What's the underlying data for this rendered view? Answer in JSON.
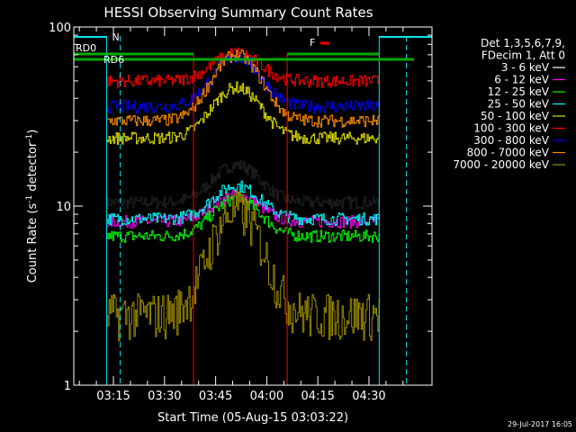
{
  "chart_data": {
    "type": "line",
    "title": "HESSI Observing Summary Count Rates",
    "xlabel": "Start Time (05-Aug-15 03:03:22)",
    "ylabel_main": "Count Rate (s",
    "ylabel_sup1": "-1",
    "ylabel_mid": " detector",
    "ylabel_sup2": "-1",
    "ylabel_end": ")",
    "yscale": "log",
    "ylim": [
      1,
      100
    ],
    "xlim_minutes": [
      3.06,
      4.88
    ],
    "x_tick_minutes": [
      0.15,
      0.3,
      0.45,
      1.0,
      1.15,
      1.3
    ],
    "x_tick_labels": [
      "03:15",
      "03:30",
      "03:45",
      "04:00",
      "04:15",
      "04:30"
    ],
    "y_tick_values": [
      1,
      10,
      100
    ],
    "y_tick_labels": [
      "1",
      "10",
      "100"
    ],
    "legend_header": [
      "Det 1,3,5,6,7,9,",
      "FDecim 1, Att 0"
    ],
    "timestamp": "29-Jul-2017 16:05",
    "flags": [
      {
        "label": "RD0",
        "color": "#00aa00"
      },
      {
        "label": "RD6",
        "color": "#00aa00"
      },
      {
        "label": "N",
        "color": "#00e5ee"
      },
      {
        "label": "F",
        "color": "#ff0000"
      }
    ],
    "series": [
      {
        "name": "3 - 6 keV",
        "color": "#000000",
        "base": 10.5,
        "peak": 17
      },
      {
        "name": "6 - 12 keV",
        "color": "#ff00ff",
        "base": 8.2,
        "peak": 11.5
      },
      {
        "name": "12 - 25 keV",
        "color": "#00ff00",
        "base": 6.8,
        "peak": 11
      },
      {
        "name": "25 - 50 keV",
        "color": "#00ffff",
        "base": 8.5,
        "peak": 13
      },
      {
        "name": "50 - 100 keV",
        "color": "#e0e000",
        "base": 24,
        "peak": 46
      },
      {
        "name": "100 - 300 keV",
        "color": "#ff0000",
        "base": 50,
        "peak": 72
      },
      {
        "name": "300 - 800 keV",
        "color": "#0000ff",
        "base": 36,
        "peak": 68
      },
      {
        "name": "800 - 7000 keV",
        "color": "#ff8c00",
        "base": 30,
        "peak": 70
      },
      {
        "name": "7000 - 20000 keV",
        "color": "#9b8b00",
        "base": 2.5,
        "peak": 9.5
      }
    ]
  }
}
